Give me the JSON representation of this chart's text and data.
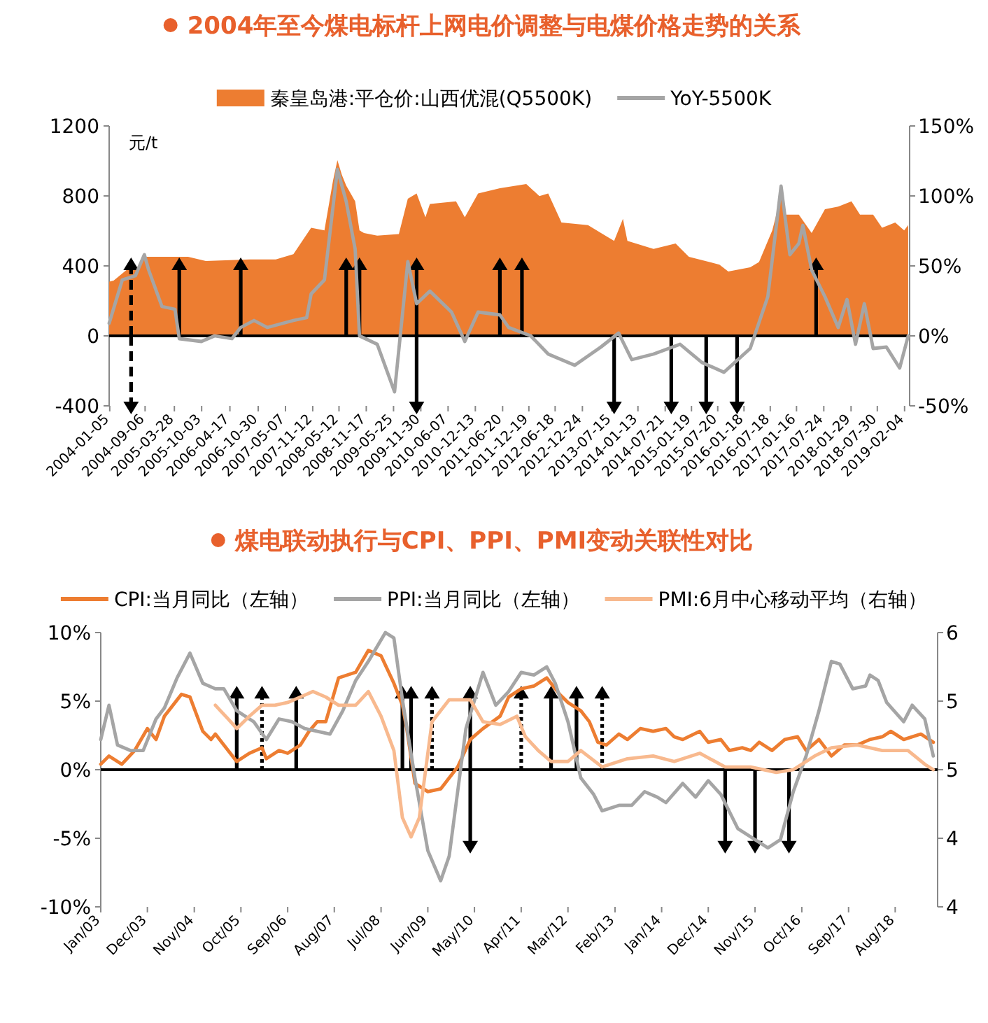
{
  "chart_data": [
    {
      "type": "area",
      "title": "2004年至今煤电标杆上网电价调整与电煤价格走势的关系",
      "ylabel": "元/t",
      "legend": "top",
      "xlim": [
        "2004-01-01",
        "2019-03-11"
      ],
      "xticks": [
        "2004-01-05",
        "2004-09-06",
        "2005-03-28",
        "2005-10-03",
        "2006-04-17",
        "2006-10-30",
        "2007-05-07",
        "2007-11-12",
        "2008-05-12",
        "2008-11-17",
        "2009-05-25",
        "2009-11-30",
        "2010-06-07",
        "2010-12-13",
        "2011-06-20",
        "2011-12-19",
        "2012-06-18",
        "2012-12-24",
        "2013-07-15",
        "2014-01-13",
        "2014-07-21",
        "2015-01-19",
        "2015-07-20",
        "2016-01-18",
        "2016-07-18",
        "2017-01-16",
        "2017-07-24",
        "2018-01-29",
        "2018-07-30",
        "2019-02-04"
      ],
      "ylim": [
        -400,
        1200
      ],
      "yticks": [
        -400,
        0,
        400,
        800,
        1200
      ],
      "y2lim": [
        -50,
        150
      ],
      "y2ticks": [
        {
          "value": -50,
          "label": "-50%"
        },
        {
          "value": 0,
          "label": "0%"
        },
        {
          "value": 50,
          "label": "50%"
        },
        {
          "value": 100,
          "label": "100%"
        },
        {
          "value": 150,
          "label": "150%"
        }
      ],
      "ref_lines": [
        {
          "axis": "y",
          "value": 0,
          "color": "#000000"
        }
      ],
      "series": [
        {
          "name": "秦皇岛港:平仓价:山西优混(Q5500K)",
          "color": "#ED7D31",
          "x": [
            "2004-01",
            "2004-02",
            "2004-05",
            "2004-07",
            "2004-09",
            "2005-07",
            "2005-11",
            "2006-09",
            "2007-03",
            "2007-07",
            "2007-11",
            "2008-02",
            "2008-04",
            "2008-05",
            "2008-06",
            "2008-07",
            "2008-09",
            "2008-10",
            "2008-11",
            "2009-02",
            "2009-07",
            "2009-09",
            "2009-11",
            "2010-01",
            "2010-02",
            "2010-08",
            "2010-10",
            "2011-01",
            "2011-06",
            "2011-12",
            "2012-03",
            "2012-05",
            "2012-08",
            "2013-02",
            "2013-06",
            "2013-08",
            "2013-10",
            "2013-11",
            "2014-05",
            "2014-10",
            "2015-01",
            "2015-08",
            "2015-10",
            "2016-03",
            "2016-05",
            "2016-08",
            "2016-10",
            "2016-11",
            "2017-02",
            "2017-05",
            "2017-08",
            "2017-11",
            "2018-02",
            "2018-04",
            "2018-07",
            "2018-09",
            "2018-12",
            "2019-02",
            "2019-03"
          ],
          "values": [
            310,
            316,
            377,
            377,
            452,
            452,
            428,
            437,
            437,
            467,
            618,
            603,
            889,
            1004,
            920,
            859,
            769,
            603,
            588,
            573,
            582,
            784,
            814,
            678,
            754,
            769,
            678,
            814,
            844,
            868,
            799,
            814,
            648,
            633,
            573,
            543,
            669,
            543,
            497,
            528,
            452,
            407,
            368,
            392,
            422,
            603,
            799,
            693,
            693,
            588,
            724,
            739,
            769,
            693,
            693,
            618,
            648,
            603,
            633
          ]
        },
        {
          "type": "line",
          "name": "YoY-5500K",
          "color": "#A5A5A5",
          "axis": "y2",
          "x": [
            "2004-01",
            "2004-04",
            "2004-07",
            "2004-09",
            "2004-10",
            "2005-01",
            "2005-04",
            "2005-05",
            "2005-10",
            "2006-01",
            "2006-05",
            "2006-07",
            "2006-10",
            "2007-01",
            "2007-07",
            "2007-10",
            "2007-11",
            "2008-02",
            "2008-05",
            "2008-07",
            "2008-09",
            "2008-10",
            "2009-02",
            "2009-06",
            "2009-09",
            "2009-11",
            "2010-02",
            "2010-07",
            "2010-10",
            "2011-01",
            "2011-06",
            "2011-08",
            "2012-01",
            "2012-05",
            "2012-11",
            "2013-05",
            "2013-09",
            "2013-12",
            "2014-05",
            "2014-11",
            "2015-04",
            "2015-09",
            "2016-03",
            "2016-07",
            "2016-10",
            "2016-12",
            "2017-02",
            "2017-03",
            "2017-05",
            "2017-08",
            "2017-11",
            "2018-01",
            "2018-03",
            "2018-05",
            "2018-07",
            "2018-10",
            "2019-01",
            "2019-03"
          ],
          "values": [
            9,
            40,
            43,
            58,
            47,
            21,
            19,
            -2,
            -4,
            0,
            -2,
            6,
            11,
            6,
            11,
            13,
            30,
            40,
            119,
            96,
            62,
            0,
            -6,
            -40,
            53,
            23,
            32,
            17,
            -4,
            17,
            15,
            6,
            0,
            -13,
            -21,
            -8,
            2,
            -17,
            -13,
            -6,
            -19,
            -26,
            -9,
            28,
            107,
            58,
            66,
            79,
            47,
            28,
            6,
            26,
            -6,
            23,
            -9,
            -8,
            -23,
            0
          ]
        },
        {
          "type": "lollipop",
          "color": "#000000",
          "marker": "triangle",
          "line_style": "solid",
          "x": [
            "2005-05",
            "2006-07",
            "2008-07",
            "2008-10",
            "2009-11",
            "2009-11",
            "2011-06",
            "2011-11",
            "2013-08",
            "2014-09",
            "2015-05",
            "2015-12",
            "2017-06"
          ],
          "values": [
            400,
            400,
            400,
            400,
            400,
            -400,
            400,
            400,
            -400,
            -400,
            -400,
            -400,
            400
          ]
        },
        {
          "type": "lollipop",
          "color": "#000000",
          "marker": "triangle",
          "line_style": "dashed",
          "x": [
            "2004-06",
            "2004-06"
          ],
          "values": [
            400,
            -400
          ]
        }
      ]
    },
    {
      "type": "line",
      "title": "煤电联动执行与CPI、PPI、PMI变动关联性对比",
      "legend": "top",
      "xlim": [
        "2003-01",
        "2019-06"
      ],
      "xticks": [
        {
          "value": "2003-01",
          "label": "Jan/03"
        },
        {
          "value": "2003-12",
          "label": "Dec/03"
        },
        {
          "value": "2004-11",
          "label": "Nov/04"
        },
        {
          "value": "2005-10",
          "label": "Oct/05"
        },
        {
          "value": "2006-09",
          "label": "Sep/06"
        },
        {
          "value": "2007-08",
          "label": "Aug/07"
        },
        {
          "value": "2008-07",
          "label": "Jul/08"
        },
        {
          "value": "2009-06",
          "label": "Jun/09"
        },
        {
          "value": "2010-05",
          "label": "May/10"
        },
        {
          "value": "2011-04",
          "label": "Apr/11"
        },
        {
          "value": "2012-03",
          "label": "Mar/12"
        },
        {
          "value": "2013-02",
          "label": "Feb/13"
        },
        {
          "value": "2014-01",
          "label": "Jan/14"
        },
        {
          "value": "2014-12",
          "label": "Dec/14"
        },
        {
          "value": "2015-11",
          "label": "Nov/15"
        },
        {
          "value": "2016-10",
          "label": "Oct/16"
        },
        {
          "value": "2017-09",
          "label": "Sep/17"
        },
        {
          "value": "2018-08",
          "label": "Aug/18"
        }
      ],
      "ylim": [
        -10,
        10
      ],
      "yticks": [
        {
          "value": -10,
          "label": "-10%"
        },
        {
          "value": -5,
          "label": "-5%"
        },
        {
          "value": 0,
          "label": "0%"
        },
        {
          "value": 5,
          "label": "5%"
        },
        {
          "value": 10,
          "label": "10%"
        }
      ],
      "y2lim": [
        4,
        6
      ],
      "y2ticks": [
        4,
        {
          "value": 4.5,
          "label": "4"
        },
        5,
        {
          "value": 5.5,
          "label": "5"
        },
        6
      ],
      "ref_lines": [
        {
          "axis": "y",
          "value": 0,
          "color": "#000000"
        }
      ],
      "series": [
        {
          "name": "CPI:当月同比（左轴）",
          "color": "#ED7D31",
          "x": [
            "2003-01",
            "2003-03",
            "2003-06",
            "2003-09",
            "2003-12",
            "2004-02",
            "2004-04",
            "2004-08",
            "2004-10",
            "2005-01",
            "2005-03",
            "2005-04",
            "2005-06",
            "2005-09",
            "2005-12",
            "2006-03",
            "2006-04",
            "2006-07",
            "2006-09",
            "2006-12",
            "2007-02",
            "2007-04",
            "2007-06",
            "2007-09",
            "2007-11",
            "2008-01",
            "2008-04",
            "2008-07",
            "2008-10",
            "2008-12",
            "2009-01",
            "2009-03",
            "2009-06",
            "2009-09",
            "2010-01",
            "2010-04",
            "2010-07",
            "2010-11",
            "2011-01",
            "2011-04",
            "2011-07",
            "2011-10",
            "2012-01",
            "2012-03",
            "2012-06",
            "2012-08",
            "2012-10",
            "2012-12",
            "2013-03",
            "2013-05",
            "2013-08",
            "2013-11",
            "2014-02",
            "2014-04",
            "2014-06",
            "2014-10",
            "2014-12",
            "2015-03",
            "2015-05",
            "2015-08",
            "2015-10",
            "2015-12",
            "2016-03",
            "2016-06",
            "2016-09",
            "2016-11",
            "2017-02",
            "2017-05",
            "2017-08",
            "2017-11",
            "2018-02",
            "2018-05",
            "2018-07",
            "2018-10",
            "2019-02",
            "2019-05"
          ],
          "values": [
            0.4,
            1.0,
            0.4,
            1.4,
            3.0,
            2.2,
            3.9,
            5.5,
            5.3,
            2.8,
            2.2,
            2.6,
            1.8,
            0.6,
            1.2,
            1.6,
            0.8,
            1.4,
            1.2,
            1.8,
            2.8,
            3.5,
            3.5,
            6.7,
            6.9,
            7.1,
            8.7,
            8.3,
            6.3,
            4.7,
            3.0,
            -1.0,
            -1.6,
            -1.4,
            0.2,
            2.2,
            3.0,
            3.9,
            5.3,
            5.9,
            6.1,
            6.7,
            5.5,
            4.9,
            4.3,
            3.5,
            2.0,
            1.8,
            2.6,
            2.2,
            3.0,
            2.8,
            3.0,
            2.4,
            2.2,
            2.8,
            2.0,
            2.2,
            1.4,
            1.6,
            1.4,
            2.0,
            1.4,
            2.2,
            2.4,
            1.4,
            2.2,
            1.0,
            1.8,
            1.8,
            2.2,
            2.4,
            2.8,
            2.2,
            2.6,
            2.0
          ]
        },
        {
          "name": "PPI:当月同比（左轴）",
          "color": "#A5A5A5",
          "x": [
            "2003-01",
            "2003-03",
            "2003-05",
            "2003-08",
            "2003-11",
            "2004-02",
            "2004-04",
            "2004-07",
            "2004-10",
            "2005-01",
            "2005-04",
            "2005-06",
            "2005-09",
            "2006-01",
            "2006-04",
            "2006-07",
            "2006-10",
            "2007-01",
            "2007-04",
            "2007-07",
            "2007-10",
            "2008-01",
            "2008-04",
            "2008-08",
            "2008-10",
            "2008-12",
            "2009-03",
            "2009-06",
            "2009-09",
            "2009-11",
            "2010-03",
            "2010-07",
            "2010-10",
            "2011-01",
            "2011-04",
            "2011-07",
            "2011-10",
            "2011-12",
            "2012-03",
            "2012-06",
            "2012-09",
            "2012-11",
            "2013-03",
            "2013-06",
            "2013-09",
            "2013-12",
            "2014-02",
            "2014-06",
            "2014-09",
            "2014-12",
            "2015-03",
            "2015-07",
            "2015-10",
            "2016-02",
            "2016-05",
            "2016-08",
            "2016-11",
            "2017-02",
            "2017-05",
            "2017-07",
            "2017-10",
            "2018-01",
            "2018-02",
            "2018-04",
            "2018-06",
            "2018-10",
            "2018-12",
            "2019-03",
            "2019-05"
          ],
          "values": [
            2.2,
            4.7,
            1.8,
            1.4,
            1.4,
            3.7,
            4.5,
            6.7,
            8.5,
            6.3,
            5.9,
            5.9,
            4.3,
            3.5,
            2.2,
            3.7,
            3.5,
            3.0,
            2.8,
            2.6,
            4.3,
            6.5,
            7.9,
            10.0,
            9.6,
            5.1,
            -0.6,
            -5.9,
            -8.1,
            -6.3,
            3.0,
            7.1,
            4.7,
            5.7,
            7.1,
            6.9,
            7.5,
            6.3,
            3.5,
            -0.6,
            -1.8,
            -3.0,
            -2.6,
            -2.6,
            -1.6,
            -2.0,
            -2.4,
            -1.0,
            -2.0,
            -0.8,
            -1.8,
            -4.3,
            -4.9,
            -5.7,
            -5.1,
            -1.6,
            1.0,
            4.3,
            7.9,
            7.7,
            5.9,
            6.1,
            6.9,
            6.5,
            4.9,
            3.5,
            4.7,
            3.7,
            1.0
          ]
        },
        {
          "type": "line",
          "name": "PMI:6月中心移动平均（右轴）",
          "color": "#F8B98E",
          "axis": "y2",
          "x": [
            "2005-04",
            "2005-07",
            "2005-09",
            "2005-12",
            "2006-03",
            "2006-06",
            "2006-09",
            "2006-12",
            "2007-03",
            "2007-06",
            "2007-09",
            "2008-01",
            "2008-04",
            "2008-07",
            "2008-10",
            "2008-12",
            "2009-02",
            "2009-04",
            "2009-07",
            "2009-11",
            "2010-04",
            "2010-07",
            "2010-11",
            "2011-03",
            "2011-05",
            "2011-08",
            "2011-11",
            "2012-03",
            "2012-06",
            "2012-11",
            "2013-05",
            "2013-11",
            "2014-04",
            "2014-10",
            "2015-04",
            "2015-10",
            "2016-04",
            "2016-08",
            "2017-01",
            "2017-05",
            "2017-11",
            "2018-05",
            "2018-11",
            "2019-03",
            "2019-05"
          ],
          "values": [
            5.47,
            5.37,
            5.3,
            5.39,
            5.47,
            5.47,
            5.49,
            5.53,
            5.57,
            5.53,
            5.47,
            5.47,
            5.57,
            5.39,
            5.14,
            4.65,
            4.51,
            4.65,
            5.35,
            5.51,
            5.51,
            5.35,
            5.33,
            5.39,
            5.24,
            5.14,
            5.06,
            5.06,
            5.14,
            5.02,
            5.08,
            5.1,
            5.06,
            5.12,
            5.02,
            5.02,
            4.98,
            5.0,
            5.1,
            5.16,
            5.18,
            5.14,
            5.14,
            5.04,
            5.0
          ]
        },
        {
          "type": "lollipop",
          "color": "#000000",
          "marker": "triangle",
          "line_style": "solid",
          "x": [
            "2005-09",
            "2006-11",
            "2008-12",
            "2009-02",
            "2010-04",
            "2010-04",
            "2011-11",
            "2012-05",
            "2015-04",
            "2015-11",
            "2016-07"
          ],
          "values": [
            5.5,
            5.5,
            5.5,
            5.5,
            5.5,
            -5.5,
            5.5,
            5.5,
            -5.5,
            -5.5,
            -5.5
          ]
        },
        {
          "type": "lollipop",
          "color": "#000000",
          "marker": "triangle",
          "line_style": "dotted",
          "x": [
            "2006-03",
            "2009-07",
            "2011-04",
            "2012-11"
          ],
          "values": [
            5.5,
            5.5,
            5.5,
            5.5
          ]
        }
      ]
    }
  ]
}
